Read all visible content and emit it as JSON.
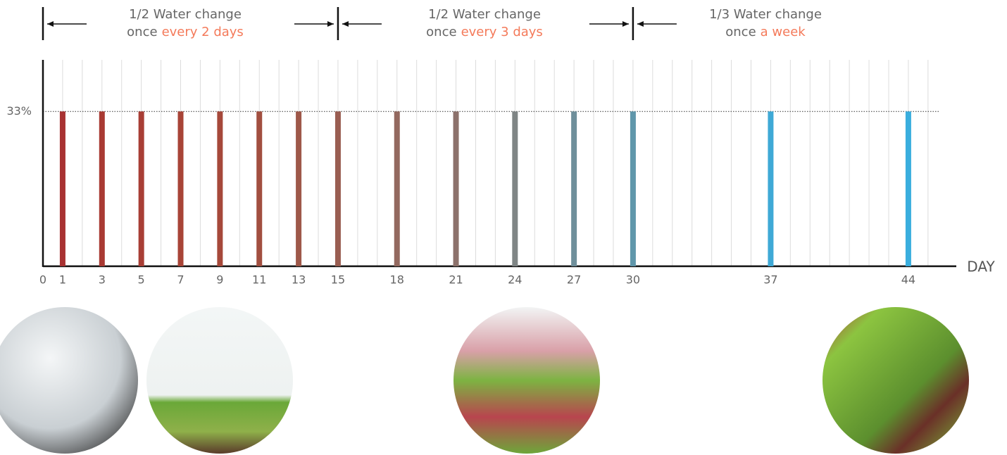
{
  "chart_data": {
    "type": "bar",
    "x": [
      1,
      3,
      5,
      7,
      9,
      11,
      13,
      15,
      18,
      21,
      24,
      27,
      30,
      37,
      44
    ],
    "values": [
      33,
      33,
      33,
      33,
      33,
      33,
      33,
      33,
      33,
      33,
      33,
      33,
      33,
      33,
      33
    ],
    "colors": [
      "#a83232",
      "#a93a33",
      "#a83e35",
      "#a84437",
      "#a6483a",
      "#a24f40",
      "#9e5849",
      "#9a5e52",
      "#93695f",
      "#8c716b",
      "#7f8585",
      "#6f8f9b",
      "#6097ab",
      "#3fa9d6",
      "#3aaede"
    ],
    "xlim": [
      0,
      46
    ],
    "ylim": [
      0,
      44
    ],
    "xticks": [
      0,
      1,
      3,
      5,
      7,
      9,
      11,
      13,
      15,
      18,
      21,
      24,
      27,
      30,
      37,
      44
    ],
    "xgrid": [
      1,
      2,
      3,
      4,
      5,
      6,
      7,
      8,
      9,
      10,
      11,
      12,
      13,
      14,
      15,
      16,
      17,
      18,
      19,
      20,
      21,
      22,
      23,
      24,
      25,
      26,
      27,
      28,
      29,
      30,
      31,
      32,
      33,
      34,
      35,
      36,
      37,
      38,
      39,
      40,
      41,
      42,
      43,
      44,
      45
    ],
    "yticks": [
      {
        "value": 33,
        "label": "33%"
      }
    ],
    "xlabel": "DAY",
    "grid": true,
    "markers": [
      0,
      15,
      30
    ],
    "annotations": [
      {
        "line1": "1/2 Water change",
        "line2": "once",
        "highlight": "every 2 days"
      },
      {
        "line1": "1/2 Water change",
        "line2": "once",
        "highlight": "every 3 days"
      },
      {
        "line1": "1/3 Water change",
        "line2": "once",
        "highlight": "a week"
      }
    ]
  }
}
